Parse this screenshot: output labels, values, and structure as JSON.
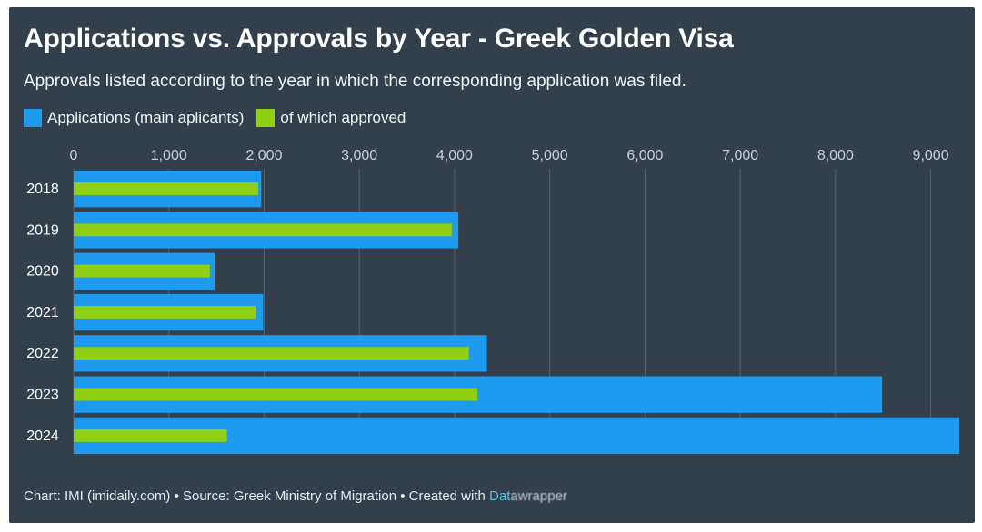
{
  "header": {
    "title": "Applications vs. Approvals by Year - Greek Golden Visa",
    "subtitle": "Approvals listed according to the year in which the corresponding application was filed."
  },
  "legend": [
    {
      "label": "Applications (main aplicants)",
      "color": "#1e9bf0"
    },
    {
      "label": "of which approved",
      "color": "#8fd014"
    }
  ],
  "footer": {
    "text": "Chart: IMI (imidaily.com) • Source: Greek Ministry of Migration • Created with ",
    "tool": "Dat",
    "tool_rest": "awrapper"
  },
  "chart_data": {
    "type": "bar",
    "orientation": "horizontal",
    "categories": [
      "2018",
      "2019",
      "2020",
      "2021",
      "2022",
      "2023",
      "2024"
    ],
    "series": [
      {
        "name": "Applications (main aplicants)",
        "color": "#1e9bf0",
        "values": [
          1970,
          4040,
          1480,
          1990,
          4340,
          8490,
          9300
        ]
      },
      {
        "name": "of which approved",
        "color": "#8fd014",
        "values": [
          1940,
          3970,
          1430,
          1910,
          4150,
          4240,
          1610
        ]
      }
    ],
    "xticks": [
      "0",
      "1,000",
      "2,000",
      "3,000",
      "4,000",
      "5,000",
      "6,000",
      "7,000",
      "8,000",
      "9,000"
    ],
    "xlim": [
      0,
      9300
    ],
    "grid": true,
    "legend_position": "top-left"
  }
}
